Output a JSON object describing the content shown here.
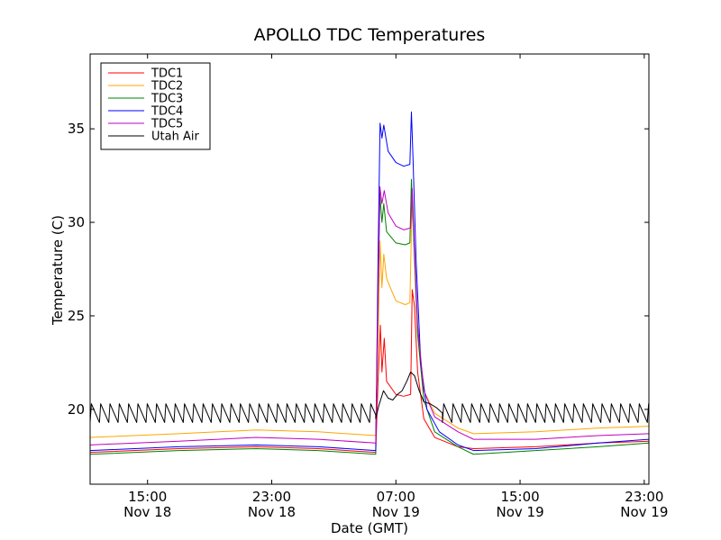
{
  "chart_data": {
    "type": "line",
    "title": "APOLLO TDC Temperatures",
    "xlabel": "Date (GMT)",
    "ylabel": "Temperature (C)",
    "x_units": "hours since Nov 18 00:00 GMT",
    "xlim": [
      11.3,
      47.3
    ],
    "ylim": [
      16,
      39
    ],
    "yticks": [
      20,
      25,
      30,
      35
    ],
    "xticks": [
      {
        "x": 15,
        "time": "15:00",
        "date": "Nov 18"
      },
      {
        "x": 23,
        "time": "23:00",
        "date": "Nov 18"
      },
      {
        "x": 31,
        "time": "07:00",
        "date": "Nov 19"
      },
      {
        "x": 39,
        "time": "15:00",
        "date": "Nov 19"
      },
      {
        "x": 47,
        "time": "23:00",
        "date": "Nov 19"
      }
    ],
    "legend_position": "top-left",
    "series": [
      {
        "name": "TDC1",
        "color": "#ff0000",
        "points": [
          [
            11.3,
            17.7
          ],
          [
            17,
            17.9
          ],
          [
            22,
            18.0
          ],
          [
            26,
            17.9
          ],
          [
            29.7,
            17.7
          ],
          [
            29.85,
            21.5
          ],
          [
            30.0,
            24.5
          ],
          [
            30.1,
            22.0
          ],
          [
            30.25,
            23.8
          ],
          [
            30.4,
            21.5
          ],
          [
            31.0,
            20.8
          ],
          [
            31.5,
            20.7
          ],
          [
            31.95,
            20.8
          ],
          [
            32.05,
            26.4
          ],
          [
            32.2,
            25.5
          ],
          [
            32.4,
            22.0
          ],
          [
            32.8,
            19.5
          ],
          [
            33.5,
            18.5
          ],
          [
            35,
            18.0
          ],
          [
            36,
            17.9
          ],
          [
            40,
            18.0
          ],
          [
            44,
            18.2
          ],
          [
            47.3,
            18.3
          ]
        ]
      },
      {
        "name": "TDC2",
        "color": "#ffa500",
        "points": [
          [
            11.3,
            18.5
          ],
          [
            17,
            18.7
          ],
          [
            22,
            18.9
          ],
          [
            26,
            18.8
          ],
          [
            29.7,
            18.6
          ],
          [
            29.85,
            23.5
          ],
          [
            29.98,
            29.0
          ],
          [
            30.1,
            26.5
          ],
          [
            30.22,
            28.3
          ],
          [
            30.4,
            27.0
          ],
          [
            31.0,
            25.8
          ],
          [
            31.6,
            25.6
          ],
          [
            31.9,
            25.7
          ],
          [
            32.05,
            31.5
          ],
          [
            32.2,
            28.0
          ],
          [
            32.4,
            24.0
          ],
          [
            32.8,
            21.0
          ],
          [
            33.5,
            19.8
          ],
          [
            35,
            19.0
          ],
          [
            36,
            18.7
          ],
          [
            40,
            18.8
          ],
          [
            44,
            19.0
          ],
          [
            47.3,
            19.1
          ]
        ]
      },
      {
        "name": "TDC3",
        "color": "#008000",
        "points": [
          [
            11.3,
            17.6
          ],
          [
            17,
            17.8
          ],
          [
            22,
            17.9
          ],
          [
            26,
            17.8
          ],
          [
            29.7,
            17.6
          ],
          [
            29.85,
            26.0
          ],
          [
            29.97,
            31.5
          ],
          [
            30.1,
            30.0
          ],
          [
            30.22,
            31.0
          ],
          [
            30.4,
            29.5
          ],
          [
            31.0,
            28.9
          ],
          [
            31.6,
            28.8
          ],
          [
            31.9,
            28.9
          ],
          [
            32.0,
            32.3
          ],
          [
            32.2,
            28.0
          ],
          [
            32.4,
            24.0
          ],
          [
            32.8,
            20.5
          ],
          [
            33.5,
            18.8
          ],
          [
            35,
            18.0
          ],
          [
            36,
            17.6
          ],
          [
            40,
            17.8
          ],
          [
            44,
            18.0
          ],
          [
            47.3,
            18.2
          ]
        ]
      },
      {
        "name": "TDC4",
        "color": "#0000ff",
        "points": [
          [
            11.3,
            17.8
          ],
          [
            17,
            18.0
          ],
          [
            22,
            18.1
          ],
          [
            26,
            18.0
          ],
          [
            29.7,
            17.8
          ],
          [
            29.85,
            28.0
          ],
          [
            29.98,
            35.3
          ],
          [
            30.1,
            34.5
          ],
          [
            30.22,
            35.2
          ],
          [
            30.5,
            33.8
          ],
          [
            31.0,
            33.2
          ],
          [
            31.5,
            33.0
          ],
          [
            31.9,
            33.1
          ],
          [
            32.0,
            35.9
          ],
          [
            32.1,
            33.5
          ],
          [
            32.3,
            28.0
          ],
          [
            32.6,
            22.5
          ],
          [
            33.0,
            20.0
          ],
          [
            33.8,
            18.8
          ],
          [
            35,
            18.1
          ],
          [
            36,
            17.8
          ],
          [
            40,
            17.9
          ],
          [
            44,
            18.2
          ],
          [
            47.3,
            18.4
          ]
        ]
      },
      {
        "name": "TDC5",
        "color": "#bf00bf",
        "points": [
          [
            11.3,
            18.1
          ],
          [
            17,
            18.3
          ],
          [
            22,
            18.5
          ],
          [
            26,
            18.4
          ],
          [
            29.7,
            18.2
          ],
          [
            29.85,
            26.0
          ],
          [
            29.97,
            31.9
          ],
          [
            30.1,
            31.0
          ],
          [
            30.25,
            31.7
          ],
          [
            30.5,
            30.5
          ],
          [
            31.0,
            29.8
          ],
          [
            31.5,
            29.6
          ],
          [
            31.95,
            29.7
          ],
          [
            32.05,
            31.8
          ],
          [
            32.2,
            28.5
          ],
          [
            32.4,
            24.5
          ],
          [
            32.8,
            21.0
          ],
          [
            33.5,
            19.6
          ],
          [
            35,
            18.8
          ],
          [
            36,
            18.4
          ],
          [
            40,
            18.4
          ],
          [
            44,
            18.6
          ],
          [
            47.3,
            18.7
          ]
        ]
      },
      {
        "name": "Utah Air",
        "color": "#000000",
        "sawtooth": {
          "period": 0.6,
          "low": 19.3,
          "high": 20.3,
          "segments": [
            [
              11.3,
              29.7
            ],
            [
              34.0,
              47.3
            ]
          ]
        },
        "points": [
          [
            29.7,
            19.5
          ],
          [
            29.9,
            20.2
          ],
          [
            30.2,
            21.0
          ],
          [
            30.5,
            20.6
          ],
          [
            30.8,
            20.5
          ],
          [
            31.1,
            20.8
          ],
          [
            31.4,
            21.0
          ],
          [
            31.7,
            21.5
          ],
          [
            31.95,
            22.0
          ],
          [
            32.2,
            21.8
          ],
          [
            32.5,
            21.0
          ],
          [
            32.8,
            20.4
          ],
          [
            33.2,
            20.3
          ],
          [
            33.6,
            20.1
          ],
          [
            34.0,
            19.8
          ]
        ]
      }
    ]
  }
}
